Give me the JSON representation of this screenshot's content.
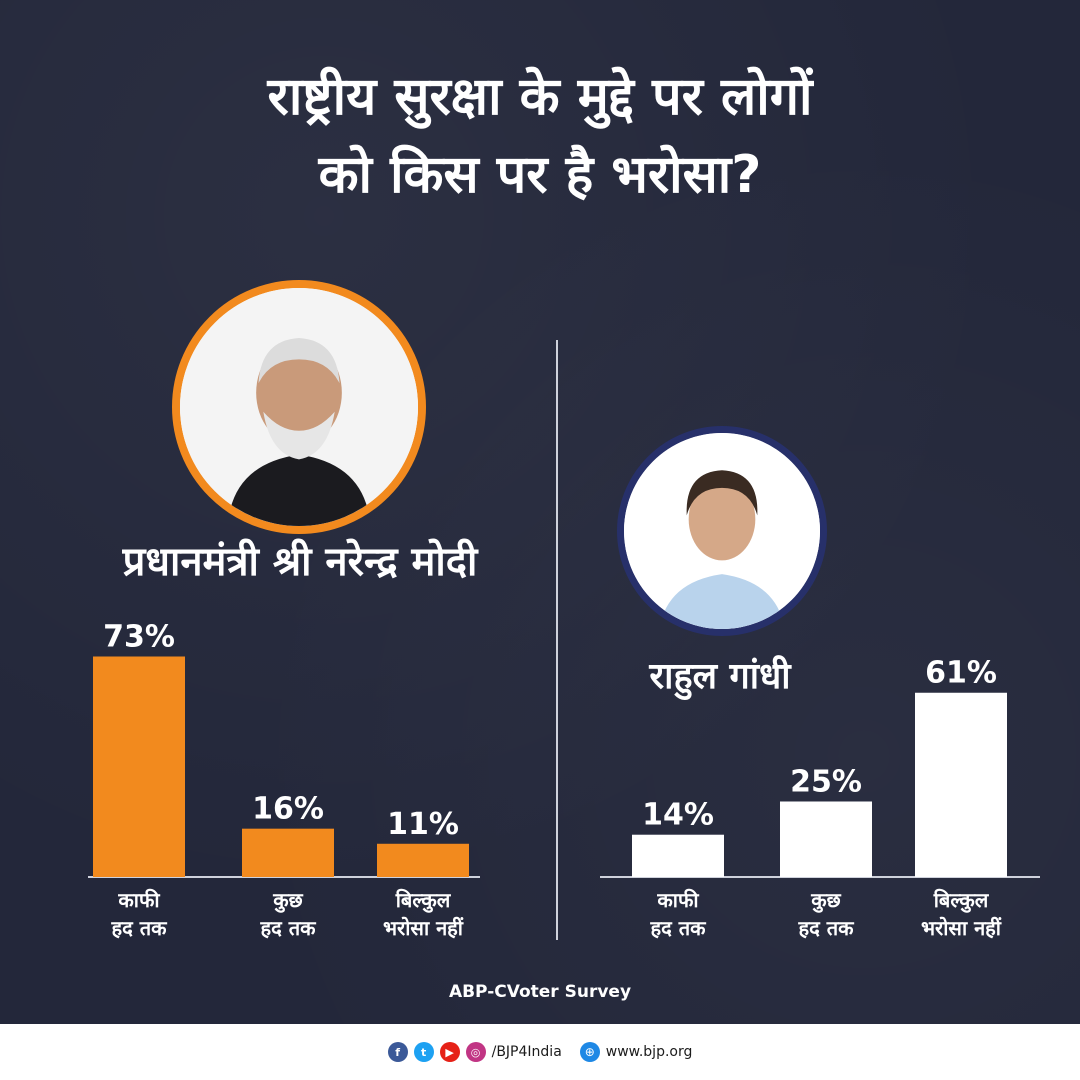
{
  "title_line1": "राष्ट्रीय सुरक्षा के मुद्दे पर लोगों",
  "title_line2": "को किस पर है भरोसा?",
  "source": "ABP-CVoter Survey",
  "footer": {
    "handle": "/BJP4India",
    "website": "www.bjp.org"
  },
  "colors": {
    "background": "#23273a",
    "orange": "#f28a1e",
    "white": "#ffffff",
    "navy": "#27306a"
  },
  "chart_data": [
    {
      "type": "bar",
      "series_name": "प्रधानमंत्री श्री नरेन्द्र मोदी",
      "categories": [
        [
          "काफी",
          "हद तक"
        ],
        [
          "कुछ",
          "हद तक"
        ],
        [
          "बिल्कुल",
          "भरोसा नहीं"
        ]
      ],
      "values": [
        73,
        16,
        11
      ],
      "value_labels": [
        "73%",
        "16%",
        "11%"
      ],
      "color": "#f28a1e",
      "ylim": [
        0,
        100
      ]
    },
    {
      "type": "bar",
      "series_name": "राहुल गांधी",
      "categories": [
        [
          "काफी",
          "हद तक"
        ],
        [
          "कुछ",
          "हद तक"
        ],
        [
          "बिल्कुल",
          "भरोसा नहीं"
        ]
      ],
      "values": [
        14,
        25,
        61
      ],
      "value_labels": [
        "14%",
        "25%",
        "61%"
      ],
      "color": "#ffffff",
      "ylim": [
        0,
        100
      ]
    }
  ]
}
